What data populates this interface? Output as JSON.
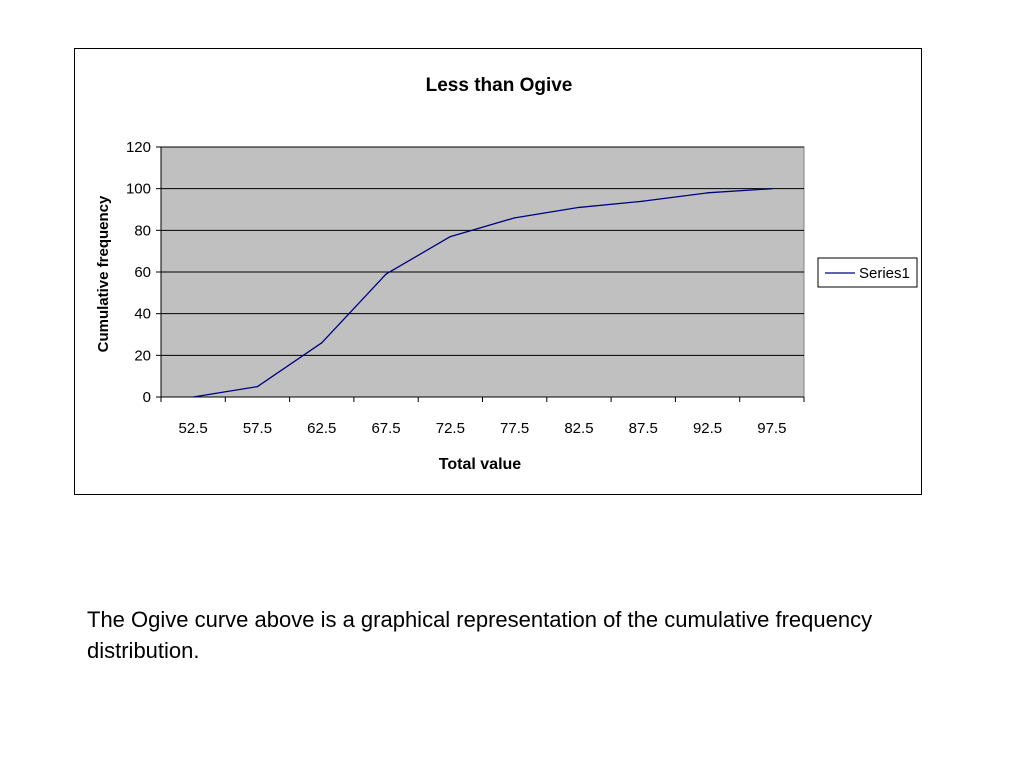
{
  "chart_data": {
    "type": "line",
    "title": "Less than Ogive",
    "xlabel": "Total value",
    "ylabel": "Cumulative frequency",
    "categories": [
      "52.5",
      "57.5",
      "62.5",
      "67.5",
      "72.5",
      "77.5",
      "82.5",
      "87.5",
      "92.5",
      "97.5"
    ],
    "series": [
      {
        "name": "Series1",
        "values": [
          0,
          5,
          26,
          59,
          77,
          86,
          91,
          94,
          98,
          100
        ]
      }
    ],
    "ylim": [
      0,
      120
    ],
    "yticks": [
      "0",
      "20",
      "40",
      "60",
      "80",
      "100",
      "120"
    ],
    "grid": true,
    "legend": "right",
    "colors": {
      "line": "#000080",
      "plot_background": "#c0c0c0",
      "gridline": "#000000"
    }
  },
  "caption": "The Ogive curve above is a graphical representation of the cumulative frequency distribution."
}
